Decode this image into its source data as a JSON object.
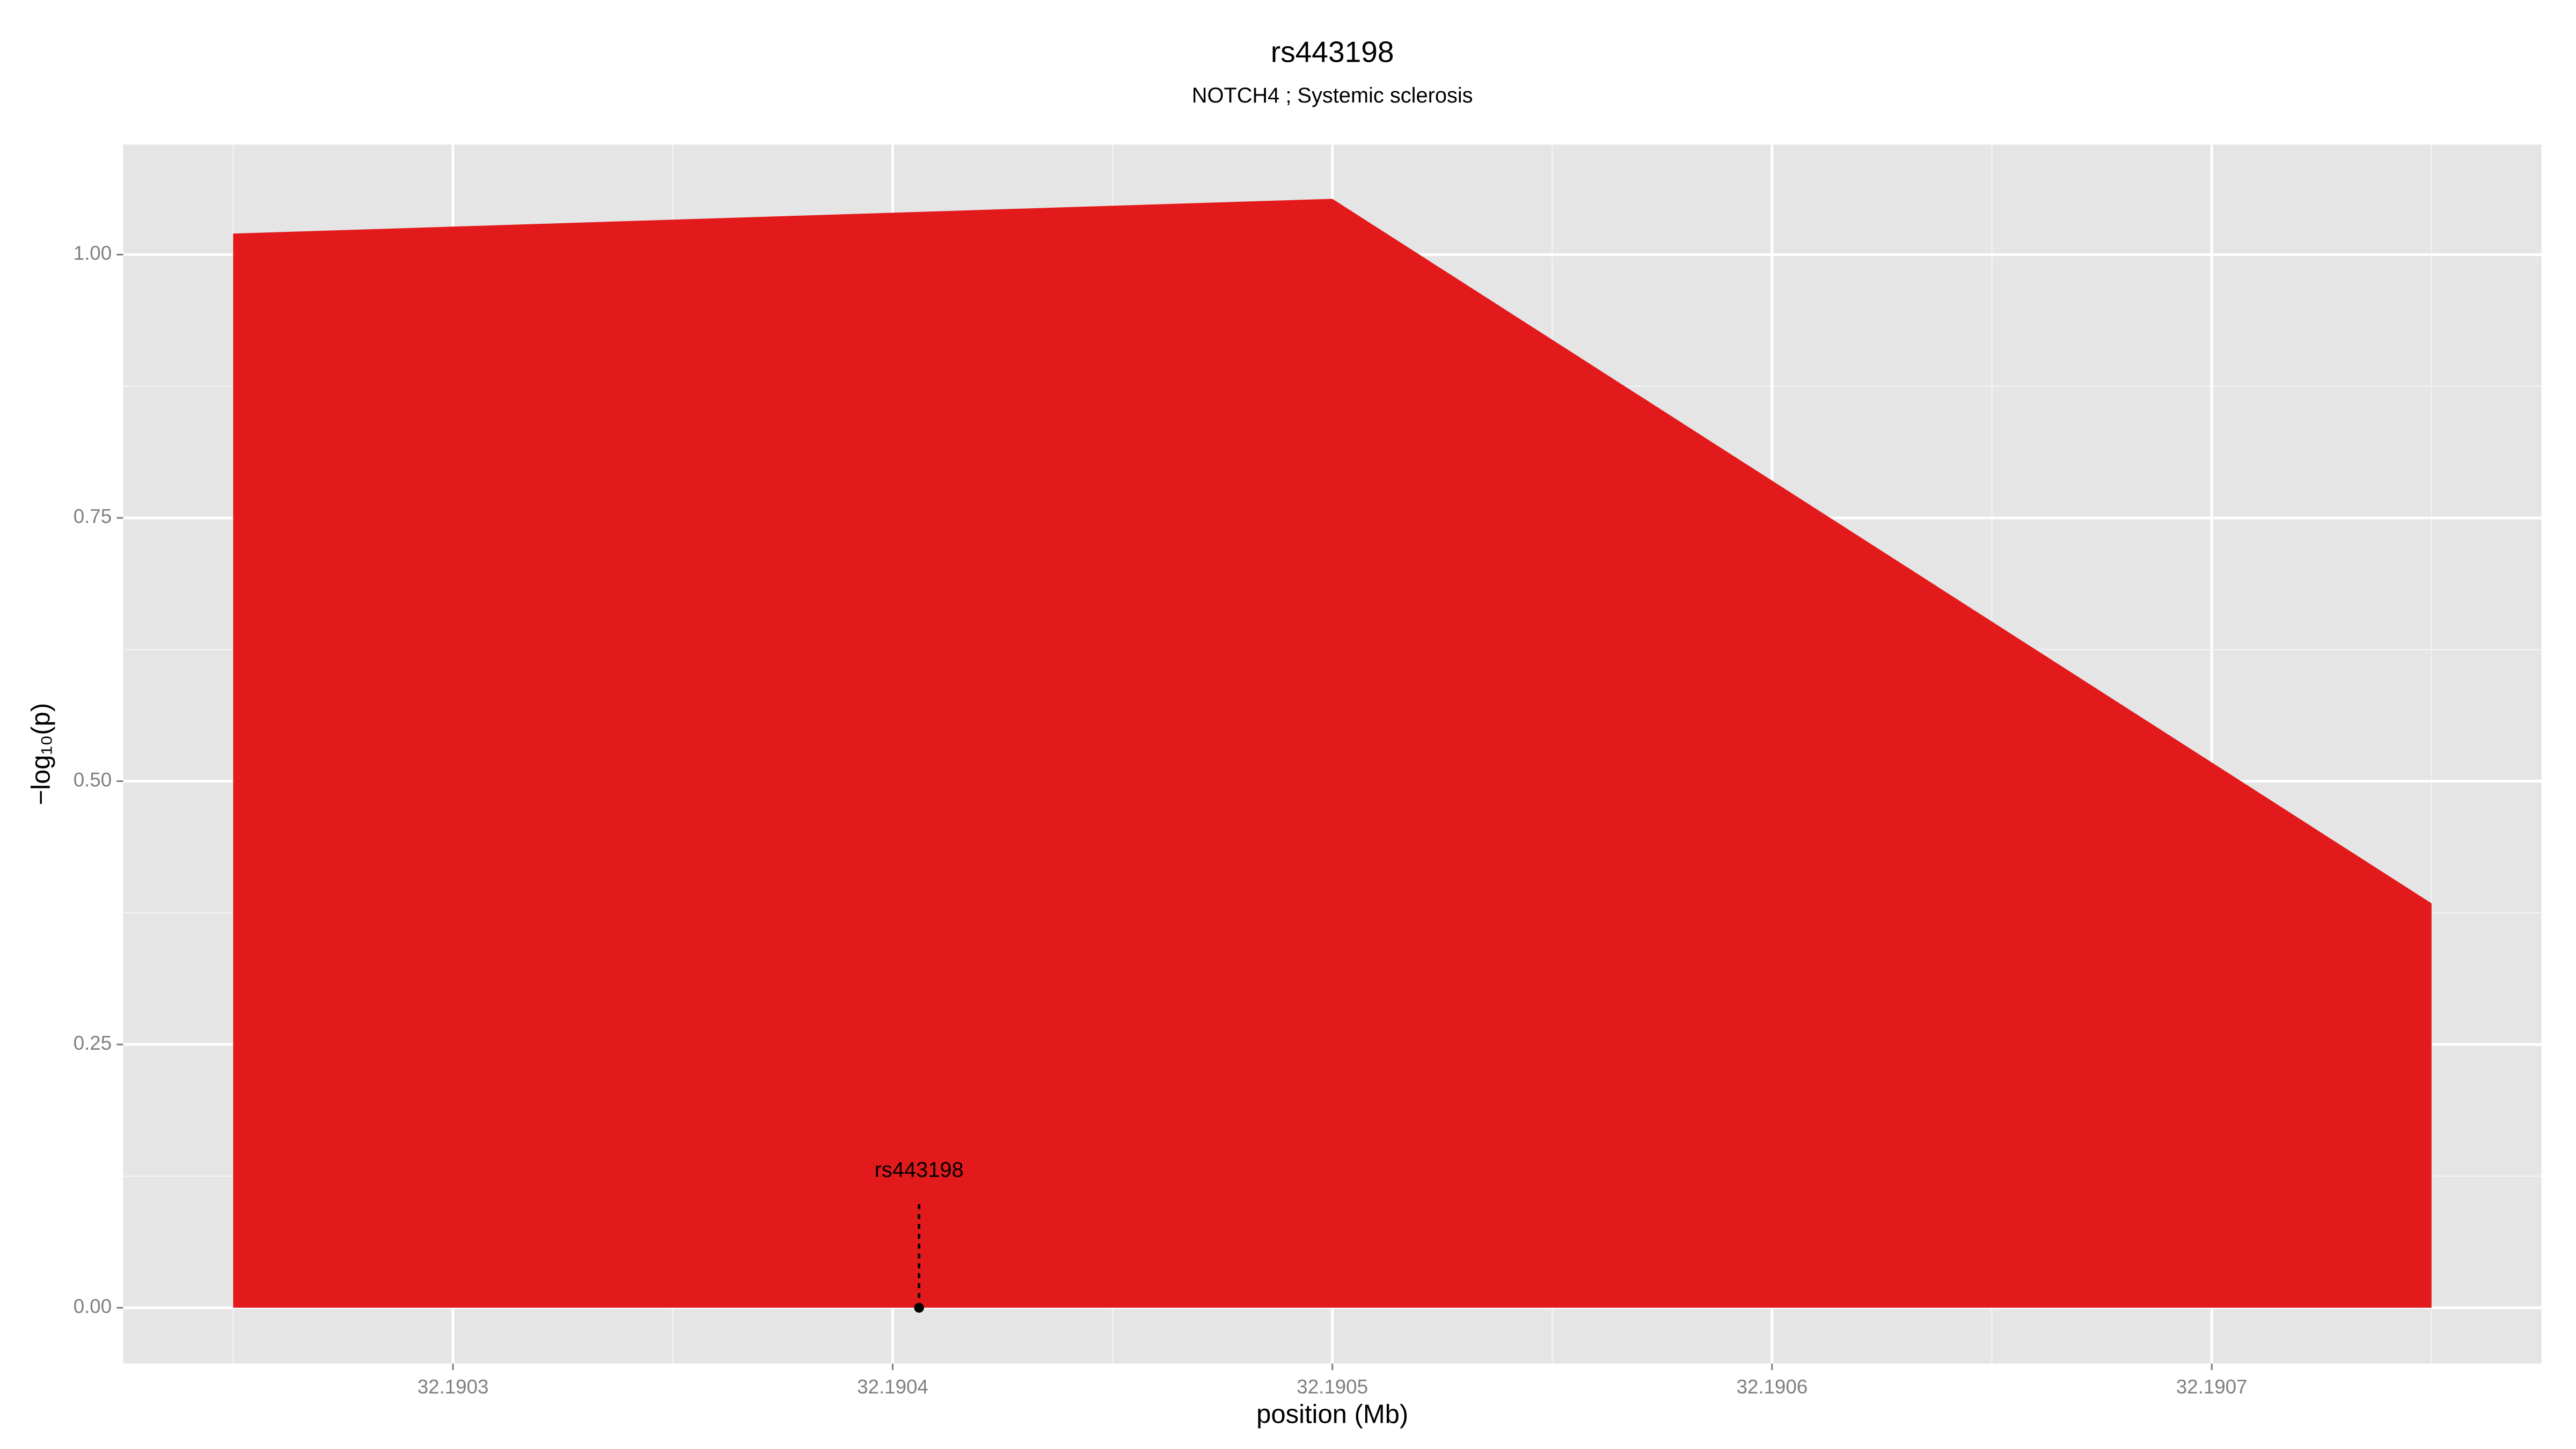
{
  "chart_data": {
    "type": "area",
    "title": "rs443198",
    "subtitle": "NOTCH4 ; Systemic sclerosis",
    "x_label": "position (Mb)",
    "y_label": "−log₁₀(p)",
    "x": [
      32.19025,
      32.1905,
      32.19075
    ],
    "series": [
      {
        "name": "Systemic sclerosis",
        "color": "#e31a1c",
        "values": [
          1.02,
          1.053,
          0.384
        ]
      }
    ],
    "xlim": [
      32.190225,
      32.190775
    ],
    "ylim": [
      -0.053,
      1.1045
    ],
    "xticks": [
      32.1903,
      32.1904,
      32.1905,
      32.1906,
      32.1907
    ],
    "yticks": [
      {
        "value": 0,
        "label": "0.00"
      },
      {
        "value": 0.25,
        "label": "0.25"
      },
      {
        "value": 0.5,
        "label": "0.50"
      },
      {
        "value": 0.75,
        "label": "0.75"
      },
      {
        "value": 1,
        "label": "1.00"
      }
    ],
    "grid": true,
    "annotations": [
      {
        "label": "rs443198",
        "x": 32.190406,
        "y": 0
      }
    ]
  }
}
